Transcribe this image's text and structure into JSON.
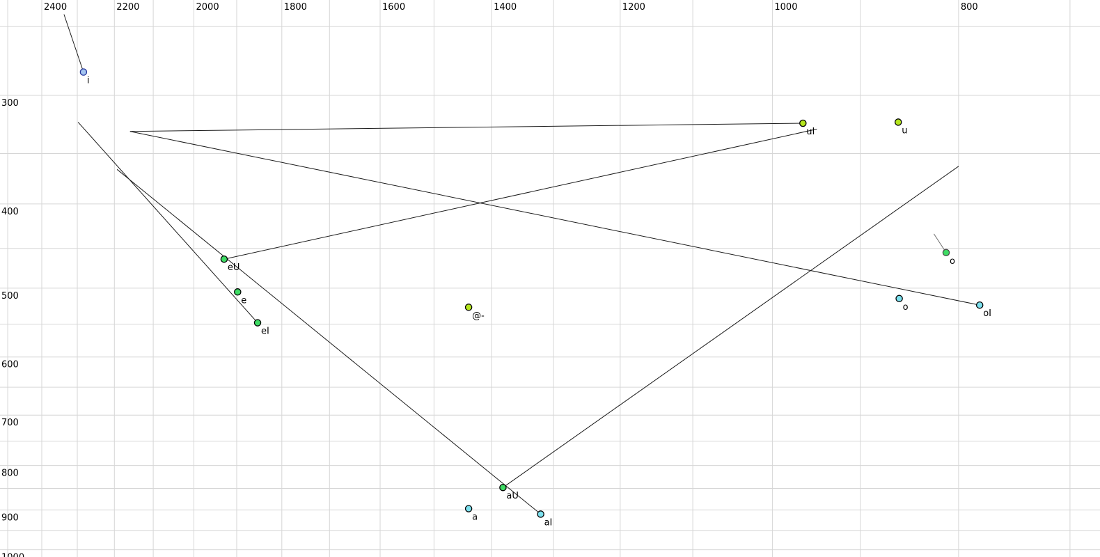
{
  "chart_data": {
    "type": "scatter",
    "title": "",
    "description_hint": "vowel formant plot: F2 on x (log, reversed, Hz), F1 on y (log, increasing downward, Hz); lines are diphthong glide trajectories from nucleus dot to offglide target",
    "grid": true,
    "legend": "none",
    "colors": {
      "background": "#ffffff",
      "gridline": "#d6d6d6",
      "trajectory": "#1a1a1a",
      "tick_text": "#000000",
      "green": "#3edb64",
      "yellowgreen": "#b5e61d",
      "cyan": "#7ce0ee",
      "blue_fill": "#a3c4f0",
      "blue_stroke": "#27379b",
      "dot_stroke": "#000000",
      "muted_stroke": "#4a4a4a",
      "muted_label": "#9896a8",
      "muted_line": "#707070"
    },
    "x_axis": {
      "tick_labels": [
        2400,
        2200,
        2000,
        1800,
        1600,
        1400,
        1200,
        1000,
        800
      ],
      "gridlines_hz": [
        2500,
        2400,
        2300,
        2200,
        2100,
        2000,
        1900,
        1800,
        1700,
        1600,
        1500,
        1400,
        1300,
        1200,
        1100,
        1000,
        900,
        800,
        700
      ],
      "scale": "log",
      "reversed": true,
      "visible_range_hz": [
        2520,
        676
      ]
    },
    "y_axis": {
      "tick_labels": [
        300,
        400,
        500,
        600,
        700,
        800,
        900,
        1000
      ],
      "gridlines_hz": [
        250,
        300,
        350,
        400,
        450,
        500,
        550,
        600,
        650,
        700,
        750,
        800,
        850,
        900,
        950,
        1000
      ],
      "scale": "log",
      "increases_downward": true,
      "visible_range_hz": [
        232,
        1037
      ]
    },
    "points": [
      {
        "label": "i",
        "f2": 2283,
        "f1": 282,
        "color": "blue",
        "glide": {
          "f2": 2337,
          "f1": 242
        }
      },
      {
        "label": "uI",
        "f2": 964,
        "f1": 323,
        "color": "yellowgreen",
        "glide": {
          "f2": 2159,
          "f1": 330
        }
      },
      {
        "label": "u",
        "f2": 860,
        "f1": 322,
        "color": "yellowgreen",
        "glide": null
      },
      {
        "label": "eU",
        "f2": 1929,
        "f1": 463,
        "color": "green",
        "glide": {
          "f2": 948,
          "f1": 328
        }
      },
      {
        "label": "e",
        "f2": 1898,
        "f1": 505,
        "color": "green",
        "glide": null
      },
      {
        "label": "eI",
        "f2": 1853,
        "f1": 548,
        "color": "green",
        "glide": {
          "f2": 2298,
          "f1": 322
        }
      },
      {
        "label": "@-",
        "f2": 1439,
        "f1": 526,
        "color": "yellowgreen",
        "glide": null
      },
      {
        "label": "o",
        "f2": 812,
        "f1": 455,
        "color": "green",
        "muted": true,
        "glide": {
          "f2": 824,
          "f1": 433
        }
      },
      {
        "label": "o",
        "f2": 859,
        "f1": 514,
        "color": "cyan",
        "glide": null
      },
      {
        "label": "oI",
        "f2": 780,
        "f1": 523,
        "color": "cyan",
        "glide": {
          "f2": 2159,
          "f1": 330
        }
      },
      {
        "label": "aU",
        "f2": 1381,
        "f1": 848,
        "color": "green",
        "glide": {
          "f2": 800,
          "f1": 362
        }
      },
      {
        "label": "a",
        "f2": 1439,
        "f1": 897,
        "color": "cyan",
        "glide": null
      },
      {
        "label": "aI",
        "f2": 1320,
        "f1": 910,
        "color": "cyan",
        "glide": {
          "f2": 2193,
          "f1": 365
        }
      }
    ]
  }
}
